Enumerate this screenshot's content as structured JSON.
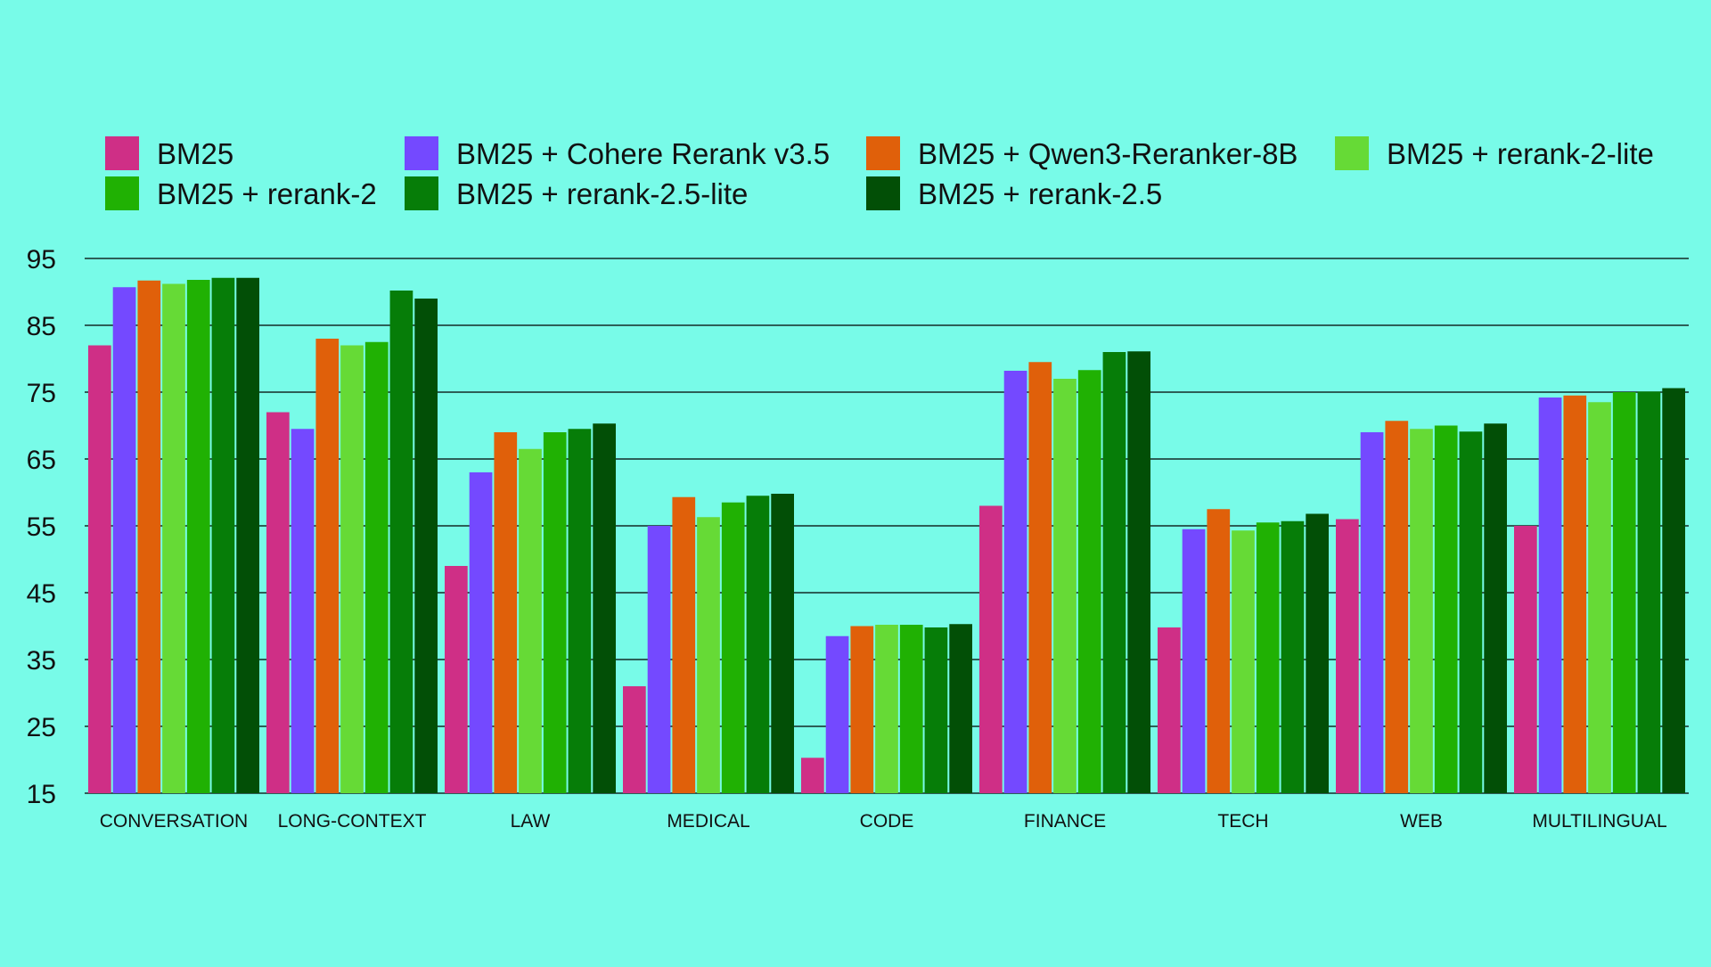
{
  "chart_data": {
    "type": "bar",
    "title": "",
    "xlabel": "",
    "ylabel": "",
    "ylim": [
      15,
      95
    ],
    "yticks": [
      15,
      25,
      35,
      45,
      55,
      65,
      75,
      85,
      95
    ],
    "grid": true,
    "legend_placement": "top",
    "categories": [
      "CONVERSATION",
      "LONG-CONTEXT",
      "LAW",
      "MEDICAL",
      "CODE",
      "FINANCE",
      "TECH",
      "WEB",
      "MULTILINGUAL"
    ],
    "series": [
      {
        "name": "BM25",
        "color": "#CF2F86",
        "values": [
          82,
          72,
          49,
          31,
          20.3,
          58,
          39.8,
          56,
          55
        ]
      },
      {
        "name": "BM25 + Cohere Rerank v3.5",
        "color": "#7449FF",
        "values": [
          90.7,
          69.5,
          63,
          55,
          38.5,
          78.2,
          54.5,
          69,
          74.2
        ]
      },
      {
        "name": "BM25 + Qwen3-Reranker-8B",
        "color": "#E0600A",
        "values": [
          91.7,
          83,
          69,
          59.3,
          40,
          79.5,
          57.5,
          70.7,
          74.5
        ]
      },
      {
        "name": "BM25 + rerank-2-lite",
        "color": "#66DA36",
        "values": [
          91.2,
          82,
          66.5,
          56.3,
          40.2,
          77,
          54.3,
          69.5,
          73.5
        ]
      },
      {
        "name": "BM25 + rerank-2",
        "color": "#20B103",
        "values": [
          91.8,
          82.5,
          69,
          58.5,
          40.2,
          78.3,
          55.5,
          70,
          75
        ]
      },
      {
        "name": "BM25 + rerank-2.5-lite",
        "color": "#067D08",
        "values": [
          92.1,
          90.2,
          69.5,
          59.5,
          39.8,
          81,
          55.7,
          69.1,
          75.1
        ]
      },
      {
        "name": "BM25 + rerank-2.5",
        "color": "#024F06",
        "values": [
          92.1,
          89,
          70.3,
          59.8,
          40.3,
          81.1,
          56.8,
          70.3,
          75.6
        ]
      }
    ]
  }
}
